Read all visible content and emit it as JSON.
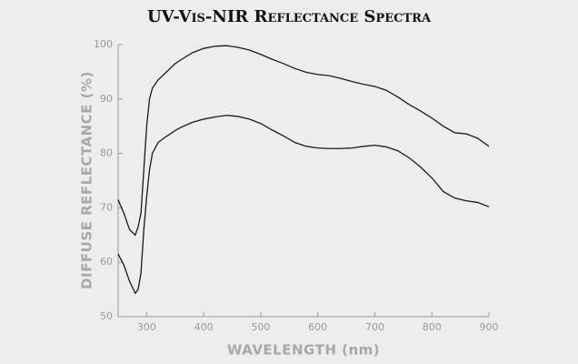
{
  "chart_data": {
    "type": "line",
    "title": "UV-Vis-NIR Reflectance Spectra",
    "xlabel": "WAVELENGTH (nm)",
    "ylabel": "DIFFUSE REFLECTANCE (%)",
    "x": [
      250,
      260,
      270,
      280,
      285,
      290,
      295,
      300,
      305,
      310,
      320,
      330,
      340,
      350,
      360,
      380,
      400,
      420,
      440,
      460,
      480,
      500,
      520,
      540,
      560,
      580,
      600,
      620,
      640,
      660,
      680,
      700,
      720,
      740,
      760,
      780,
      800,
      820,
      840,
      860,
      880,
      900
    ],
    "series": [
      {
        "color": "#1a1a1a",
        "values": [
          71.5,
          69,
          66,
          65,
          66.5,
          69,
          77,
          85,
          90,
          92,
          93.5,
          94.5,
          95.5,
          96.5,
          97.2,
          98.5,
          99.3,
          99.7,
          99.8,
          99.5,
          99,
          98.2,
          97.3,
          96.5,
          95.6,
          94.9,
          94.5,
          94.3,
          93.8,
          93.2,
          92.7,
          92.3,
          91.6,
          90.4,
          89,
          87.8,
          86.5,
          85,
          83.8,
          83.6,
          82.8,
          81.3
        ]
      },
      {
        "color": "#1a1a1a",
        "values": [
          61.5,
          59.5,
          56.5,
          54.3,
          55,
          58,
          66,
          72,
          77,
          80,
          82,
          82.8,
          83.5,
          84.2,
          84.8,
          85.7,
          86.3,
          86.7,
          87,
          86.8,
          86.3,
          85.5,
          84.3,
          83.2,
          82,
          81.3,
          81,
          80.9,
          80.9,
          81,
          81.3,
          81.5,
          81.2,
          80.5,
          79.2,
          77.5,
          75.5,
          73,
          71.8,
          71.3,
          71,
          70.2
        ]
      }
    ],
    "xlim": [
      250,
      900
    ],
    "xticks": [
      300,
      400,
      500,
      600,
      700,
      800,
      900
    ],
    "ylim": [
      50,
      100
    ],
    "yticks": [
      50,
      60,
      70,
      80,
      90,
      100
    ]
  }
}
